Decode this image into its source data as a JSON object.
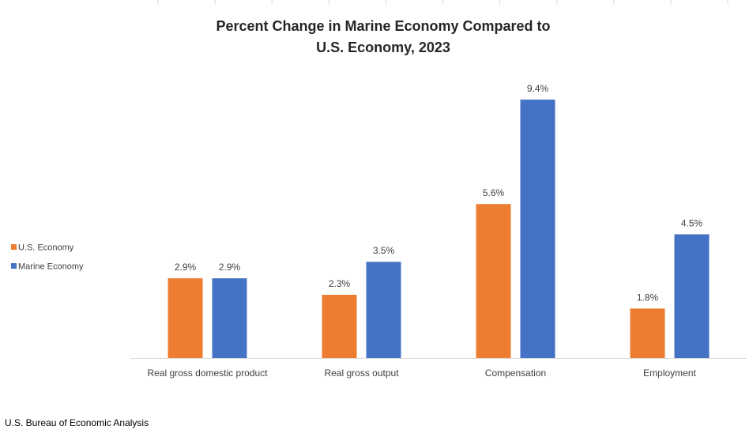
{
  "chart_data": {
    "type": "bar",
    "title_lines": [
      "Percent Change in Marine Economy Compared to",
      "U.S. Economy, 2023"
    ],
    "categories": [
      "Real gross domestic product",
      "Real gross output",
      "Compensation",
      "Employment"
    ],
    "series": [
      {
        "name": "U.S. Economy",
        "color": "#ED7D31",
        "values": [
          2.9,
          2.3,
          5.6,
          1.8
        ],
        "labels": [
          "2.9%",
          "2.3%",
          "5.6%",
          "1.8%"
        ]
      },
      {
        "name": "Marine Economy",
        "color": "#4472C4",
        "values": [
          2.9,
          3.5,
          9.4,
          4.5
        ],
        "labels": [
          "2.9%",
          "3.5%",
          "9.4%",
          "4.5%"
        ]
      }
    ],
    "unit": "%",
    "ylim": [
      0,
      9.4
    ],
    "grid": false,
    "legend_placement": "left"
  },
  "source": "U.S. Bureau of Economic Analysis"
}
